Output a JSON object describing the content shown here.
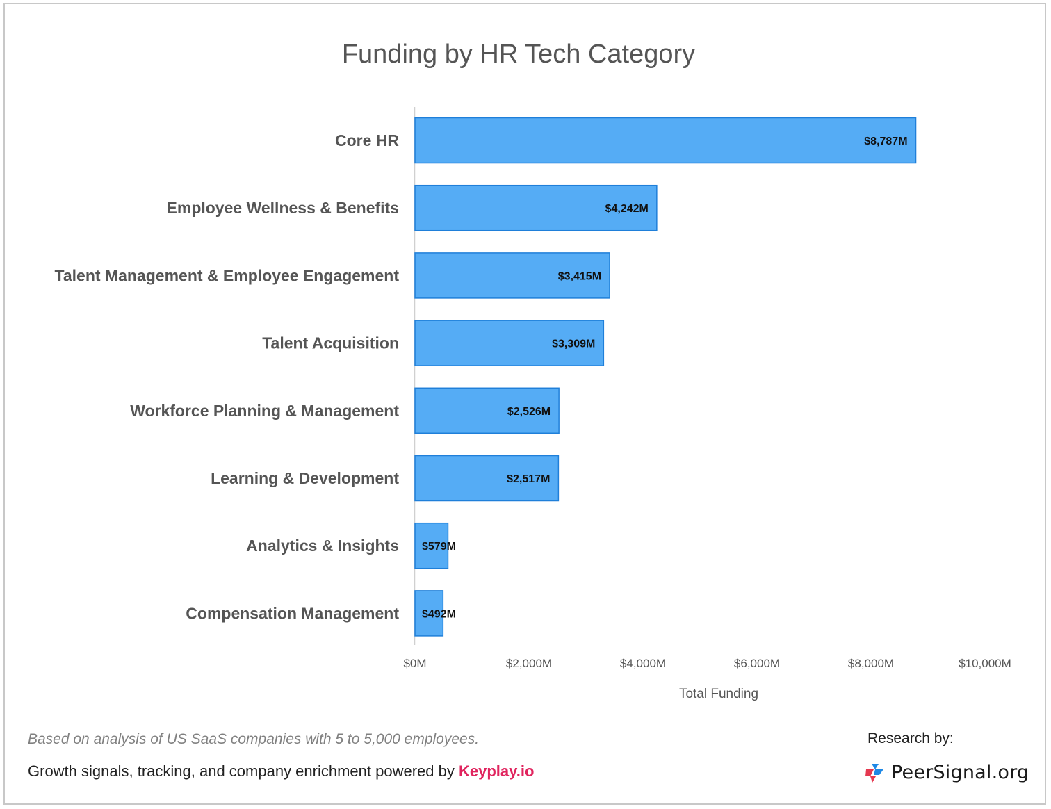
{
  "chart_data": {
    "type": "bar",
    "orientation": "horizontal",
    "title": "Funding by HR Tech Category",
    "xlabel": "Total Funding",
    "ylabel": "",
    "xlim": [
      0,
      10000
    ],
    "grid": false,
    "bar_color": "#55acf5",
    "bar_edge_color": "#1f7fd9",
    "categories": [
      "Core HR",
      "Employee Wellness & Benefits",
      "Talent Management & Employee Engagement",
      "Talent Acquisition",
      "Workforce Planning & Management",
      "Learning & Development",
      "Analytics & Insights",
      "Compensation Management"
    ],
    "values": [
      8787,
      4242,
      3415,
      3309,
      2526,
      2517,
      579,
      492
    ],
    "value_labels": [
      "$8,787M",
      "$4,242M",
      "$3,415M",
      "$3,309M",
      "$2,526M",
      "$2,517M",
      "$579M",
      "$492M"
    ],
    "x_ticks": [
      0,
      2000,
      4000,
      6000,
      8000,
      10000
    ],
    "x_tick_labels": [
      "$0M",
      "$2,000M",
      "$4,000M",
      "$6,000M",
      "$8,000M",
      "$10,000M"
    ]
  },
  "footer": {
    "note": "Based on analysis of US SaaS companies with 5 to 5,000 employees.",
    "powered_text": "Growth signals, tracking, and company enrichment powered by ",
    "powered_link": "Keyplay.io",
    "powered_link_color": "#e0245e",
    "research_label": "Research by:",
    "brand_name": "PeerSignal.org",
    "brand_icon": "peersignal-logo-icon"
  }
}
